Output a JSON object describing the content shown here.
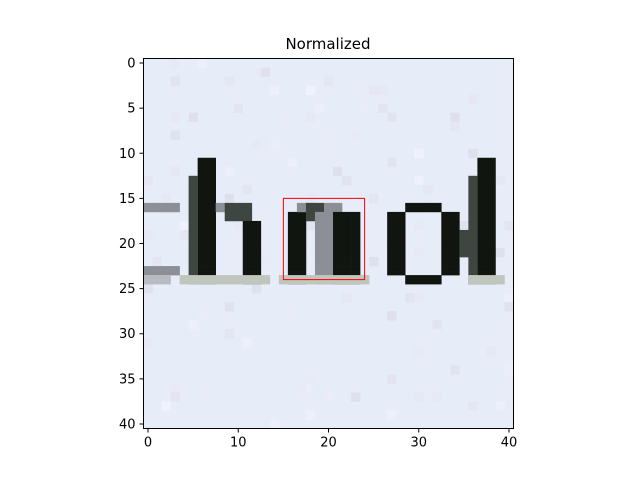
{
  "chart_data": {
    "type": "heatmap",
    "title": "Normalized",
    "xlabel": "",
    "ylabel": "",
    "grid": false,
    "image_size": [
      41,
      41
    ],
    "xlim": [
      -0.5,
      40.5
    ],
    "ylim": [
      40.5,
      -0.5
    ],
    "x_ticks": [
      0,
      10,
      20,
      30,
      40
    ],
    "y_ticks": [
      0,
      5,
      10,
      15,
      20,
      25,
      30,
      35,
      40
    ],
    "image_content": "grayscale-tinted pixelated handwritten letters \"chmol\" on pale blue-white background",
    "highlight_box": {
      "x0": 15,
      "y0": 15,
      "x1": 24,
      "y1": 24,
      "color": "#ff0000"
    }
  },
  "colors": {
    "background": "#e6ecf8",
    "ink": "#10160f",
    "ink_mid": "#3d4640",
    "ink_light": "#8c9096",
    "highlight": "#ff0000"
  }
}
